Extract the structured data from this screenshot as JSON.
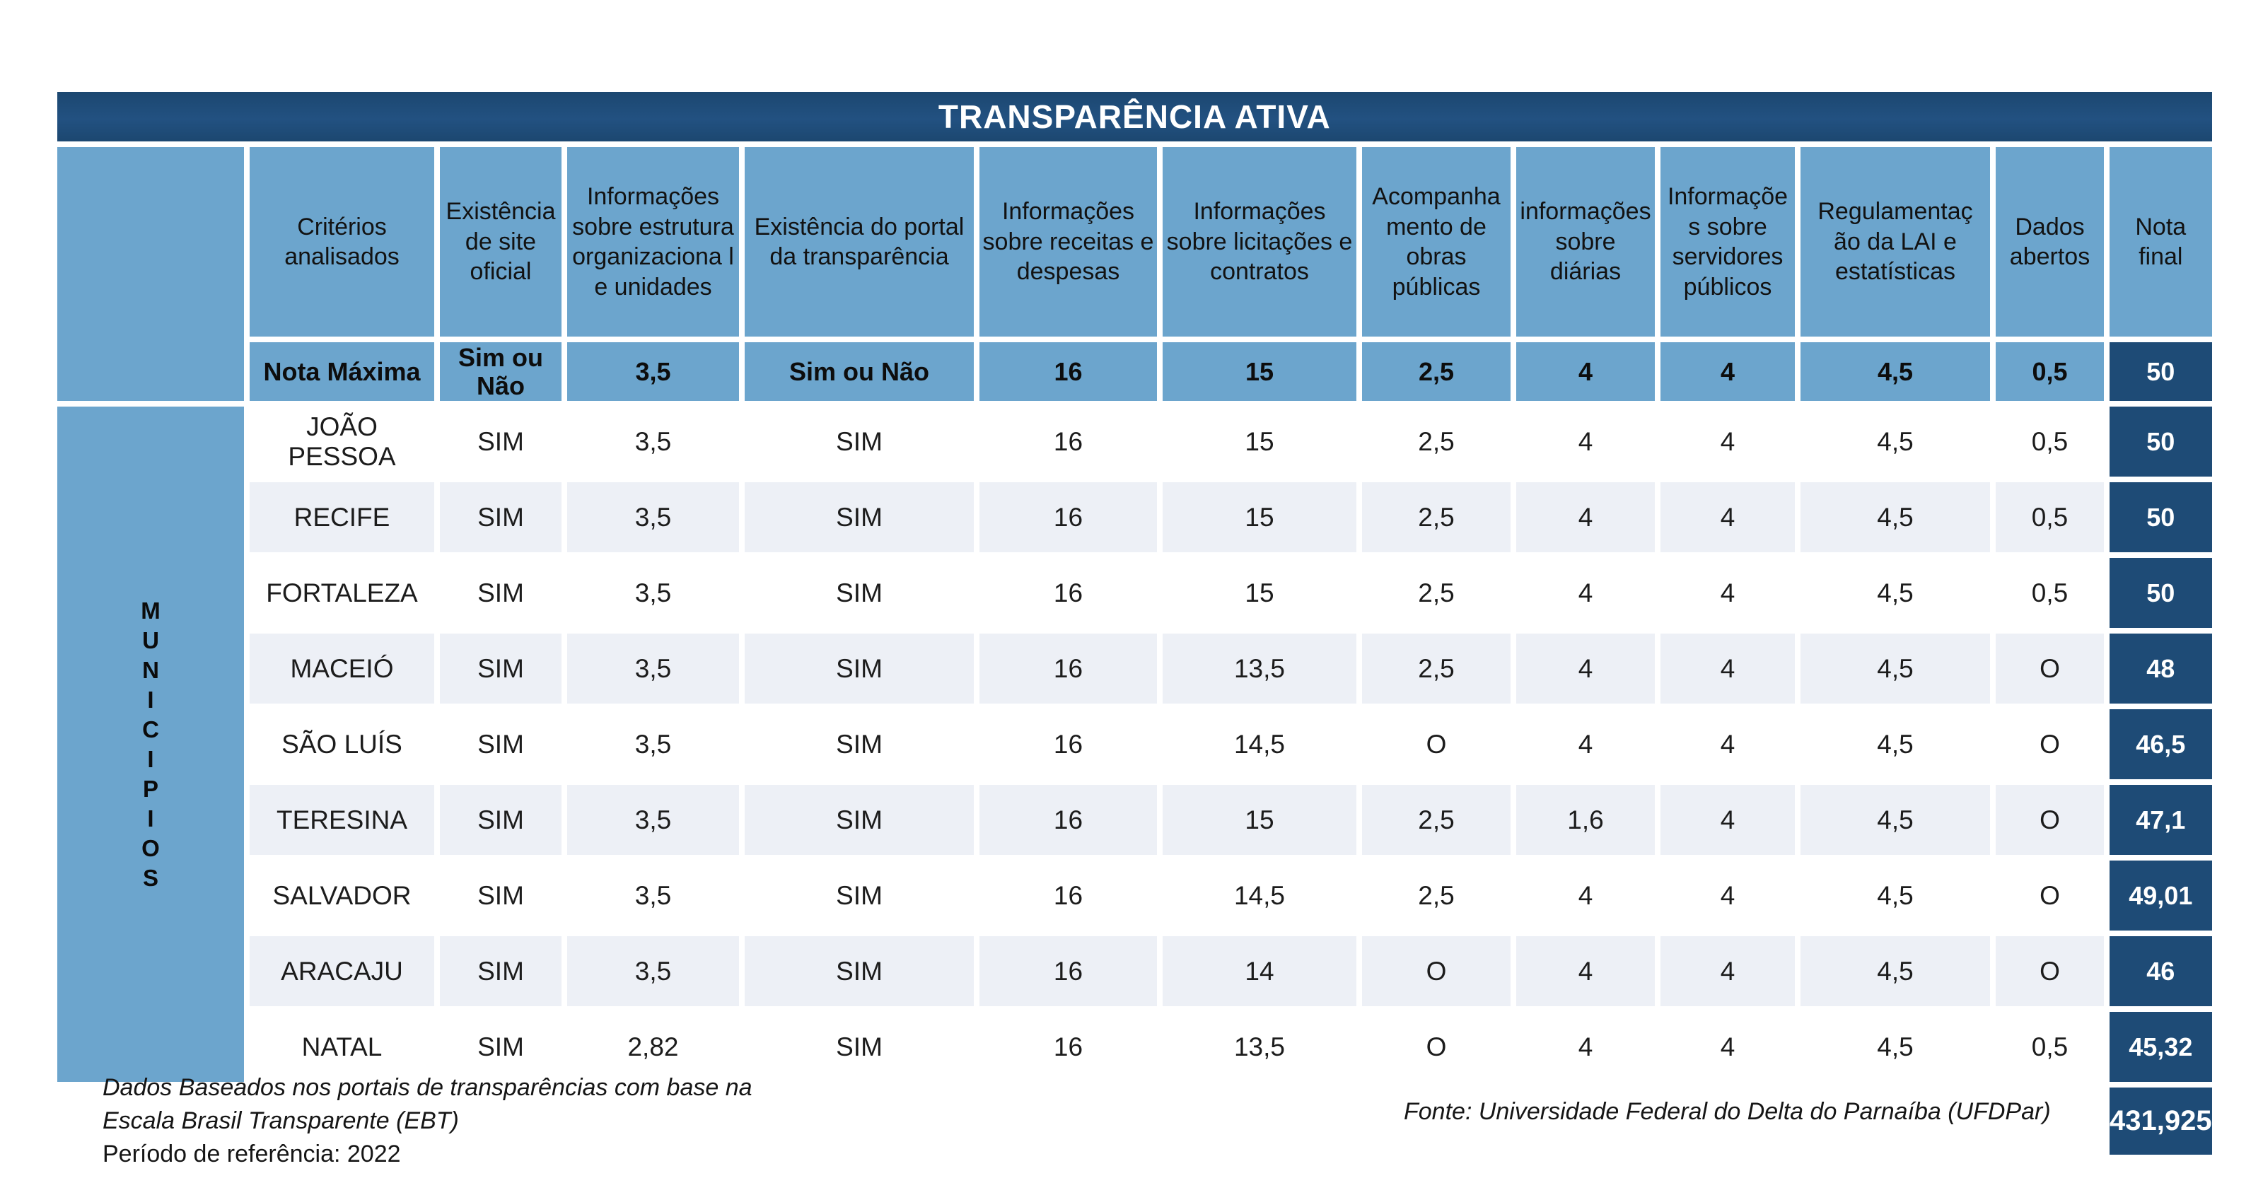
{
  "title": "TRANSPARÊNCIA ATIVA",
  "colors": {
    "navy": "#1E4B76",
    "light_blue": "#6CA5CD",
    "stripe_gray": "#EDF0F6"
  },
  "legend_column": {
    "word": "MUNICIPIOS",
    "letters": [
      "M",
      "U",
      "N",
      "I",
      "C",
      "I",
      "P",
      "I",
      "O",
      "S"
    ]
  },
  "columns": [
    "Critérios analisados",
    "Existência de site oficial",
    "Informações sobre estrutura organizaciona l e unidades",
    "Existência do portal da transparência",
    "Informações sobre receitas e despesas",
    "Informações sobre licitações e contratos",
    "Acompanha mento de obras públicas",
    "informações sobre diárias",
    "Informações sobre servidores públicos",
    "Regulamentaç ão da LAI e estatísticas",
    "Dados abertos",
    "Nota final"
  ],
  "max_row": {
    "label": "Nota Máxima",
    "values": [
      "Sim ou Não",
      "3,5",
      "Sim ou Não",
      "16",
      "15",
      "2,5",
      "4",
      "4",
      "4,5",
      "0,5"
    ],
    "nota": "50"
  },
  "rows": [
    {
      "city": "JOÃO PESSOA",
      "values": [
        "SIM",
        "3,5",
        "SIM",
        "16",
        "15",
        "2,5",
        "4",
        "4",
        "4,5",
        "0,5"
      ],
      "nota": "50"
    },
    {
      "city": "RECIFE",
      "values": [
        "SIM",
        "3,5",
        "SIM",
        "16",
        "15",
        "2,5",
        "4",
        "4",
        "4,5",
        "0,5"
      ],
      "nota": "50"
    },
    {
      "city": "FORTALEZA",
      "values": [
        "SIM",
        "3,5",
        "SIM",
        "16",
        "15",
        "2,5",
        "4",
        "4",
        "4,5",
        "0,5"
      ],
      "nota": "50"
    },
    {
      "city": "MACEIÓ",
      "values": [
        "SIM",
        "3,5",
        "SIM",
        "16",
        "13,5",
        "2,5",
        "4",
        "4",
        "4,5",
        "O"
      ],
      "nota": "48"
    },
    {
      "city": "SÃO LUÍS",
      "values": [
        "SIM",
        "3,5",
        "SIM",
        "16",
        "14,5",
        "O",
        "4",
        "4",
        "4,5",
        "O"
      ],
      "nota": "46,5"
    },
    {
      "city": "TERESINA",
      "values": [
        "SIM",
        "3,5",
        "SIM",
        "16",
        "15",
        "2,5",
        "1,6",
        "4",
        "4,5",
        "O"
      ],
      "nota": "47,1"
    },
    {
      "city": "SALVADOR",
      "values": [
        "SIM",
        "3,5",
        "SIM",
        "16",
        "14,5",
        "2,5",
        "4",
        "4",
        "4,5",
        "O"
      ],
      "nota": "49,01"
    },
    {
      "city": "ARACAJU",
      "values": [
        "SIM",
        "3,5",
        "SIM",
        "16",
        "14",
        "O",
        "4",
        "4",
        "4,5",
        "O"
      ],
      "nota": "46"
    },
    {
      "city": "NATAL",
      "values": [
        "SIM",
        "2,82",
        "SIM",
        "16",
        "13,5",
        "O",
        "4",
        "4",
        "4,5",
        "0,5"
      ],
      "nota": "45,32"
    }
  ],
  "total": "431,925",
  "footnotes": {
    "left_line1": "Dados Baseados nos portais de transparências com base na",
    "left_line2": "Escala Brasil Transparente (EBT)",
    "left_line3": "Período de referência: 2022",
    "source": "Fonte: Universidade Federal do Delta do Parnaíba (UFDPar)"
  }
}
